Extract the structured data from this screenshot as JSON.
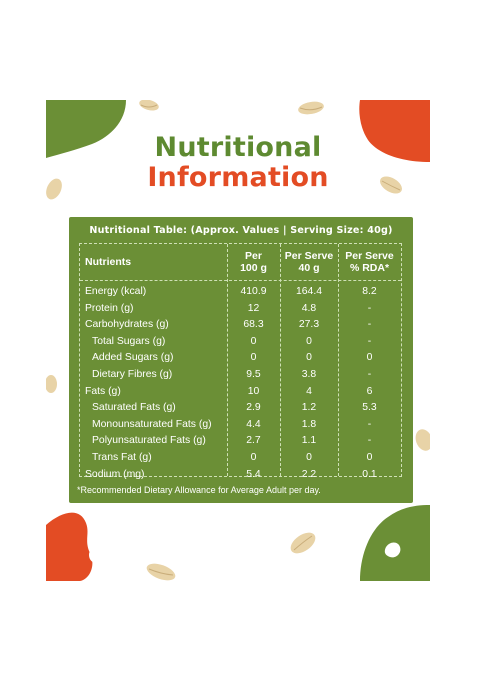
{
  "title": {
    "line1": "Nutritional",
    "line2": "Information"
  },
  "colors": {
    "green": "#6b8f36",
    "title_green": "#5e8a31",
    "orange": "#e34c24",
    "white": "#ffffff"
  },
  "card": {
    "header": "Nutritional Table: (Approx. Values | Serving Size: 40g)",
    "columns": [
      {
        "label": "Nutrients"
      },
      {
        "label": "Per\n100 g"
      },
      {
        "label": "Per Serve\n40 g"
      },
      {
        "label": "Per Serve\n% RDA*"
      }
    ],
    "rows": [
      {
        "name": "Energy (kcal)",
        "sub": false,
        "per100": "410.9",
        "perServe": "164.4",
        "rda": "8.2"
      },
      {
        "name": "Protein (g)",
        "sub": false,
        "per100": "12",
        "perServe": "4.8",
        "rda": "-"
      },
      {
        "name": "Carbohydrates (g)",
        "sub": false,
        "per100": "68.3",
        "perServe": "27.3",
        "rda": "-"
      },
      {
        "name": "Total Sugars (g)",
        "sub": true,
        "per100": "0",
        "perServe": "0",
        "rda": "-"
      },
      {
        "name": "Added Sugars (g)",
        "sub": true,
        "per100": "0",
        "perServe": "0",
        "rda": "0"
      },
      {
        "name": "Dietary Fibres (g)",
        "sub": true,
        "per100": "9.5",
        "perServe": "3.8",
        "rda": "-"
      },
      {
        "name": "Fats (g)",
        "sub": false,
        "per100": "10",
        "perServe": "4",
        "rda": "6"
      },
      {
        "name": "Saturated Fats (g)",
        "sub": true,
        "per100": "2.9",
        "perServe": "1.2",
        "rda": "5.3"
      },
      {
        "name": "Monounsaturated Fats (g)",
        "sub": true,
        "per100": "4.4",
        "perServe": "1.8",
        "rda": "-"
      },
      {
        "name": "Polyunsaturated Fats (g)",
        "sub": true,
        "per100": "2.7",
        "perServe": "1.1",
        "rda": "-"
      },
      {
        "name": "Trans Fat (g)",
        "sub": true,
        "per100": "0",
        "perServe": "0",
        "rda": "0"
      },
      {
        "name": "Sodium (mg)",
        "sub": false,
        "per100": "5.4",
        "perServe": "2.2",
        "rda": "0.1"
      }
    ],
    "footnote": "*Recommended Dietary Allowance for Average Adult per day."
  }
}
